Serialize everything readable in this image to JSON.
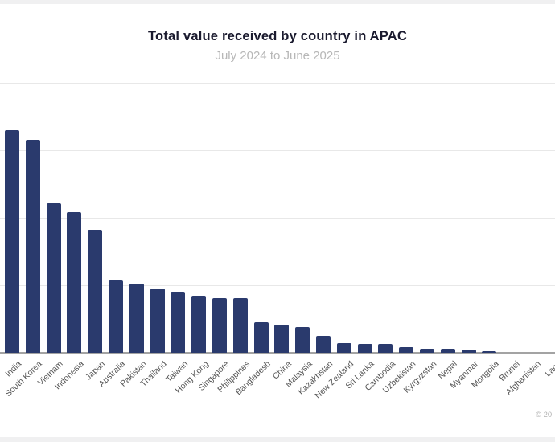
{
  "page": {
    "background_color": "#f0f0f1",
    "card_color": "#ffffff"
  },
  "header": {
    "title": "Total value received by country in APAC",
    "subtitle": "July 2024 to June 2025"
  },
  "footer": {
    "copyright": "© 20"
  },
  "chart_data": {
    "type": "bar",
    "title": "Total value received by country in APAC",
    "subtitle": "July 2024 to June 2025",
    "xlabel": "",
    "ylabel": "",
    "value_scale": "relative units; y-axis labels not visible in screenshot (0 = baseline, 100 = top gridline)",
    "ylim": [
      0,
      100
    ],
    "gridlines": [
      25,
      50,
      75,
      100
    ],
    "grid": "horizontal",
    "legend": "none",
    "bar_color": "#2a3a6d",
    "axis_line_color": "#a3a3a3",
    "gridline_color": "#e8e8e8",
    "label_color": "#565656",
    "categories": [
      "India",
      "South Korea",
      "Vietnam",
      "Indonesia",
      "Japan",
      "Australia",
      "Pakistan",
      "Thailand",
      "Taiwan",
      "Hong Kong",
      "Singapore",
      "Philippines",
      "Bangladesh",
      "China",
      "Malaysia",
      "Kazakhstan",
      "New Zealand",
      "Sri Lanka",
      "Cambodia",
      "Uzbekistan",
      "Kyrgyzstan",
      "Nepal",
      "Myanmar",
      "Mongolia",
      "Brunei",
      "Afghanistan",
      "Laos"
    ],
    "values": [
      82.4,
      78.9,
      55.4,
      52.1,
      45.5,
      26.8,
      25.6,
      23.8,
      22.6,
      21.1,
      20.2,
      20.2,
      11.3,
      10.4,
      9.5,
      6.3,
      3.6,
      3.4,
      3.3,
      2.1,
      1.5,
      1.5,
      1.2,
      0.5,
      0.1,
      0.1,
      0.05
    ]
  }
}
